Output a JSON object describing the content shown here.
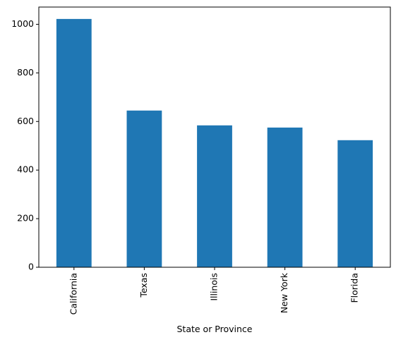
{
  "chart_data": {
    "type": "bar",
    "title": "",
    "xlabel": "State or Province",
    "ylabel": "",
    "categories": [
      "California",
      "Texas",
      "Illinois",
      "New York",
      "Florida"
    ],
    "values": [
      1022,
      645,
      584,
      575,
      523
    ],
    "ylim": [
      0,
      1071
    ],
    "yticks": [
      0,
      200,
      400,
      600,
      800,
      1000
    ],
    "grid": false,
    "legend": "none",
    "bar_color": "#1f77b4",
    "axis_color": "#000000"
  }
}
